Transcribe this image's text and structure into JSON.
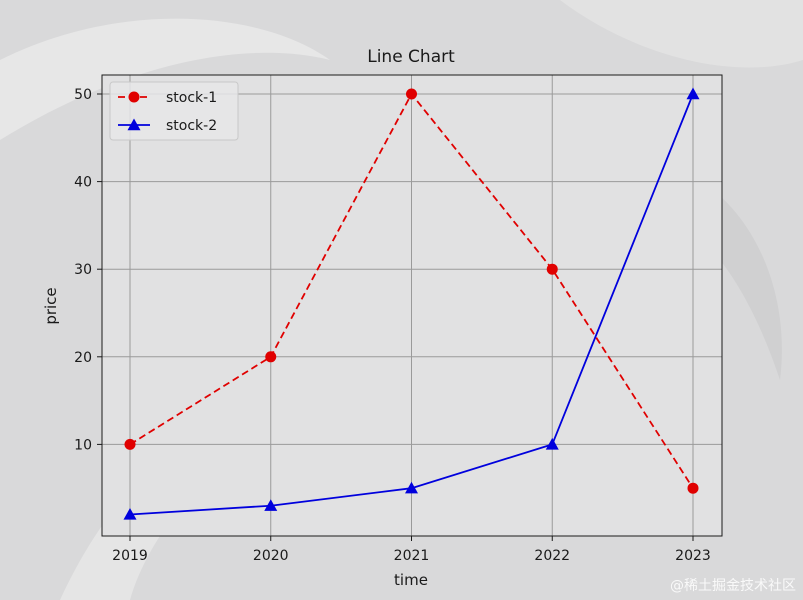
{
  "chart_data": {
    "type": "line",
    "title": "Line Chart",
    "xlabel": "time",
    "ylabel": "price",
    "categories": [
      "2019",
      "2020",
      "2021",
      "2022",
      "2023"
    ],
    "x_ticks": [
      "2019",
      "2020",
      "2021",
      "2022",
      "2023"
    ],
    "y_ticks": [
      10,
      20,
      30,
      40,
      50
    ],
    "ylim": [
      0,
      52.4
    ],
    "grid": true,
    "legend_position": "top-left",
    "series": [
      {
        "name": "stock-1",
        "values": [
          10,
          20,
          50,
          30,
          5
        ],
        "color": "#e00000",
        "linestyle": "dashed",
        "marker": "circle"
      },
      {
        "name": "stock-2",
        "values": [
          2,
          3,
          5,
          10,
          50
        ],
        "color": "#0000dd",
        "linestyle": "solid",
        "marker": "triangle"
      }
    ]
  },
  "watermark": "@稀土掘金技术社区"
}
